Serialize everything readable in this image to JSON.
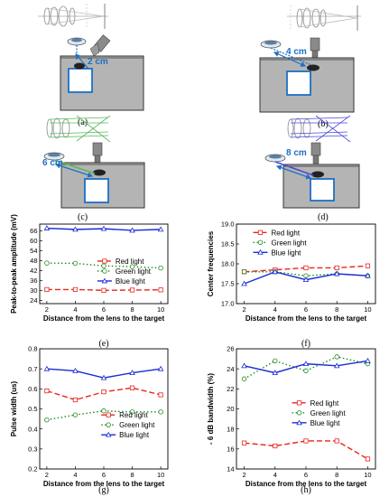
{
  "setups": [
    {
      "caption": "(a)",
      "distance": "2 cm"
    },
    {
      "caption": "(b)",
      "distance": "4 cm"
    },
    {
      "caption": "(c)",
      "distance": "6 cm"
    },
    {
      "caption": "(d)",
      "distance": "8 cm"
    }
  ],
  "chart_data": [
    {
      "caption": "(e)",
      "type": "line",
      "xlabel": "Distance from the lens to the target",
      "ylabel": "Peak-to-peak amplitude (mV)",
      "x": [
        2,
        4,
        6,
        8,
        10
      ],
      "xlim": [
        1.5,
        10.5
      ],
      "ylim": [
        22,
        70
      ],
      "yticks": [
        24,
        30,
        36,
        42,
        48,
        54,
        60,
        66
      ],
      "legend_position": "center-right",
      "series": [
        {
          "name": "Red light",
          "color": "#e8241c",
          "dash": "6,3",
          "marker": "square",
          "values": [
            30.5,
            30.5,
            30.0,
            30.2,
            30.3
          ]
        },
        {
          "name": "Green light",
          "color": "#1f8a1f",
          "dash": "1.5,2.5",
          "marker": "circle",
          "values": [
            46.5,
            46.3,
            44.8,
            44.3,
            43.5
          ]
        },
        {
          "name": "Blue light",
          "color": "#1a2bd6",
          "dash": "",
          "marker": "triangle",
          "values": [
            67.5,
            66.8,
            67.2,
            66.2,
            66.8
          ]
        }
      ]
    },
    {
      "caption": "(f)",
      "type": "line",
      "xlabel": "Distance from the lens to the target",
      "ylabel": "Center frequencies",
      "x": [
        2,
        4,
        6,
        8,
        10
      ],
      "xlim": [
        1.5,
        10.5
      ],
      "ylim": [
        17.0,
        19.0
      ],
      "yticks": [
        17.0,
        17.5,
        18.0,
        18.5,
        19.0
      ],
      "legend_position": "top-left",
      "series": [
        {
          "name": "Red light",
          "color": "#e8241c",
          "dash": "6,3",
          "marker": "square",
          "values": [
            17.8,
            17.85,
            17.9,
            17.9,
            17.95
          ]
        },
        {
          "name": "Green light",
          "color": "#1f8a1f",
          "dash": "1.5,2.5",
          "marker": "circle",
          "values": [
            17.8,
            17.8,
            17.7,
            17.75,
            17.7
          ]
        },
        {
          "name": "Blue light",
          "color": "#1a2bd6",
          "dash": "",
          "marker": "triangle",
          "values": [
            17.5,
            17.8,
            17.6,
            17.75,
            17.7
          ]
        }
      ]
    },
    {
      "caption": "(g)",
      "type": "line",
      "xlabel": "Distance from the lens to the target",
      "ylabel": "Pulse width (us)",
      "x": [
        2,
        4,
        6,
        8,
        10
      ],
      "xlim": [
        1.5,
        10.5
      ],
      "ylim": [
        0.2,
        0.8
      ],
      "yticks": [
        0.2,
        0.3,
        0.4,
        0.5,
        0.6,
        0.7,
        0.8
      ],
      "legend_position": "bottom-right",
      "series": [
        {
          "name": "Red light",
          "color": "#e8241c",
          "dash": "6,3",
          "marker": "square",
          "values": [
            0.59,
            0.545,
            0.585,
            0.605,
            0.57
          ]
        },
        {
          "name": "Green light",
          "color": "#1f8a1f",
          "dash": "1.5,2.5",
          "marker": "circle",
          "values": [
            0.445,
            0.47,
            0.49,
            0.485,
            0.485
          ]
        },
        {
          "name": "Blue light",
          "color": "#1a2bd6",
          "dash": "",
          "marker": "triangle",
          "values": [
            0.7,
            0.69,
            0.655,
            0.68,
            0.7
          ]
        }
      ]
    },
    {
      "caption": "(h)",
      "type": "line",
      "xlabel": "Distance from the lens to the target",
      "ylabel": "- 6 dB bandwidth (%)",
      "x": [
        2,
        4,
        6,
        8,
        10
      ],
      "xlim": [
        1.5,
        10.5
      ],
      "ylim": [
        14,
        26
      ],
      "yticks": [
        14,
        16,
        18,
        20,
        22,
        24,
        26
      ],
      "legend_position": "center-right",
      "series": [
        {
          "name": "Red light",
          "color": "#e8241c",
          "dash": "6,3",
          "marker": "square",
          "values": [
            16.6,
            16.3,
            16.8,
            16.8,
            15.0
          ]
        },
        {
          "name": "Green light",
          "color": "#1f8a1f",
          "dash": "1.5,2.5",
          "marker": "circle",
          "values": [
            23.0,
            24.8,
            23.8,
            25.2,
            24.5
          ]
        },
        {
          "name": "Blue light",
          "color": "#1a2bd6",
          "dash": "",
          "marker": "triangle",
          "values": [
            24.3,
            23.6,
            24.5,
            24.3,
            24.8
          ]
        }
      ]
    }
  ]
}
